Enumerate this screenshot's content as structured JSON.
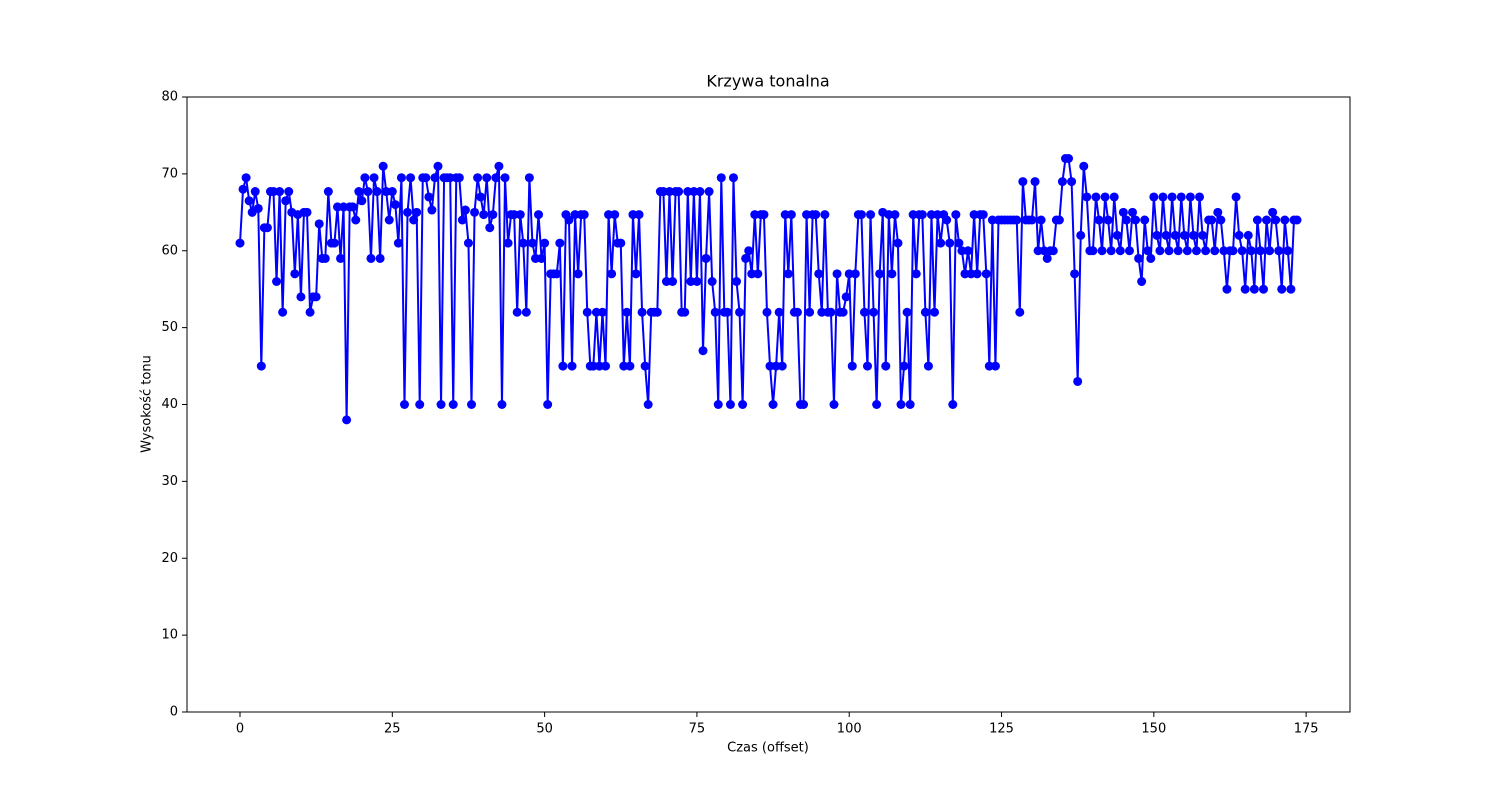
{
  "chart_data": {
    "type": "line",
    "title": "Krzywa tonalna",
    "x_label": "Czas (offset)",
    "y_label": "Wysokość tonu",
    "xlim": [
      -8.7,
      182.2
    ],
    "ylim": [
      0,
      80
    ],
    "xticks": [
      0,
      25,
      50,
      75,
      100,
      125,
      150,
      175
    ],
    "yticks": [
      0,
      10,
      20,
      30,
      40,
      50,
      60,
      70,
      80
    ],
    "x": [
      0,
      0.5,
      1,
      1.5,
      2,
      2.5,
      3,
      3.5,
      4,
      4.5,
      5,
      5.5,
      6,
      6.5,
      7,
      7.5,
      8,
      8.5,
      9,
      9.5,
      10,
      10.5,
      11,
      11.5,
      12,
      12.5,
      13,
      13.5,
      14,
      14.5,
      15,
      15.5,
      16,
      16.5,
      17,
      17.5,
      18,
      18.5,
      19,
      19.5,
      20,
      20.5,
      21,
      21.5,
      22,
      22.5,
      23,
      23.5,
      24,
      24.5,
      25,
      25.5,
      26,
      26.5,
      27,
      27.5,
      28,
      28.5,
      29,
      29.5,
      30,
      30.5,
      31,
      31.5,
      32,
      32.5,
      33,
      33.5,
      34,
      34.5,
      35,
      35.5,
      36,
      36.5,
      37,
      37.5,
      38,
      38.5,
      39,
      39.5,
      40,
      40.5,
      41,
      41.5,
      42,
      42.5,
      43,
      43.5,
      44,
      44.5,
      45,
      45.5,
      46,
      46.5,
      47,
      47.5,
      48,
      48.5,
      49,
      49.5,
      50,
      50.5,
      51,
      51.5,
      52,
      52.5,
      53,
      53.5,
      54,
      54.5,
      55,
      55.5,
      56,
      56.5,
      57,
      57.5,
      58,
      58.5,
      59,
      59.5,
      60,
      60.5,
      61,
      61.5,
      62,
      62.5,
      63,
      63.5,
      64,
      64.5,
      65,
      65.5,
      66,
      66.5,
      67,
      67.5,
      68,
      68.5,
      69,
      69.5,
      70,
      70.5,
      71,
      71.5,
      72,
      72.5,
      73,
      73.5,
      74,
      74.5,
      75,
      75.5,
      76,
      76.5,
      77,
      77.5,
      78,
      78.5,
      79,
      79.5,
      80,
      80.5,
      81,
      81.5,
      82,
      82.5,
      83,
      83.5,
      84,
      84.5,
      85,
      85.5,
      86,
      86.5,
      87,
      87.5,
      88,
      88.5,
      89,
      89.5,
      90,
      90.5,
      91,
      91.5,
      92,
      92.5,
      93,
      93.5,
      94,
      94.5,
      95,
      95.5,
      96,
      96.5,
      97,
      97.5,
      98,
      98.5,
      99,
      99.5,
      100,
      100.5,
      101,
      101.5,
      102,
      102.5,
      103,
      103.5,
      104,
      104.5,
      105,
      105.5,
      106,
      106.5,
      107,
      107.5,
      108,
      108.5,
      109,
      109.5,
      110,
      110.5,
      111,
      111.5,
      112,
      112.5,
      113,
      113.5,
      114,
      114.5,
      115,
      115.5,
      116,
      116.5,
      117,
      117.5,
      118,
      118.5,
      119,
      119.5,
      120,
      120.5,
      121,
      121.5,
      122,
      122.5,
      123,
      123.5,
      124,
      124.5,
      125,
      125.5,
      126,
      126.5,
      127,
      127.5,
      128,
      128.5,
      129,
      129.5,
      130,
      130.5,
      131,
      131.5,
      132,
      132.5,
      133,
      133.5,
      134,
      134.5,
      135,
      135.5,
      136,
      136.5,
      137,
      137.5,
      138,
      138.5,
      139,
      139.5,
      140,
      140.5,
      141,
      141.5,
      142,
      142.5,
      143,
      143.5,
      144,
      144.5,
      145,
      145.5,
      146,
      146.5,
      147,
      147.5,
      148,
      148.5,
      149,
      149.5,
      150,
      150.5,
      151,
      151.5,
      152,
      152.5,
      153,
      153.5,
      154,
      154.5,
      155,
      155.5,
      156,
      156.5,
      157,
      157.5,
      158,
      158.5,
      159,
      159.5,
      160,
      160.5,
      161,
      161.5,
      162,
      162.5,
      163,
      163.5,
      164,
      164.5,
      165,
      165.5,
      166,
      166.5,
      167,
      167.5,
      168,
      168.5,
      169,
      169.5,
      170,
      170.5,
      171,
      171.5,
      172,
      172.5,
      173,
      173.5
    ],
    "series": [
      {
        "color": "#0000ff",
        "values": [
          61,
          68,
          69.5,
          66.5,
          65,
          67.7,
          65.5,
          45,
          63,
          63,
          67.7,
          67.7,
          56,
          67.7,
          52,
          66.5,
          67.7,
          65,
          57,
          64.7,
          54,
          65,
          65,
          52,
          54,
          54,
          63.5,
          59,
          59,
          67.7,
          61,
          61,
          65.7,
          59,
          65.7,
          38,
          65.7,
          65.7,
          64,
          67.7,
          66.5,
          69.5,
          67.7,
          59,
          69.5,
          67.7,
          59,
          71,
          67.7,
          64,
          67.7,
          66,
          61,
          69.5,
          40,
          65,
          69.5,
          64,
          65,
          40,
          69.5,
          69.5,
          67,
          65.3,
          69.5,
          71,
          40,
          69.5,
          69.5,
          69.5,
          40,
          69.5,
          69.5,
          64,
          65.3,
          61,
          40,
          65,
          69.5,
          67,
          64.7,
          69.5,
          63,
          64.7,
          69.5,
          71,
          40,
          69.5,
          61,
          64.7,
          64.7,
          52,
          64.7,
          61,
          52,
          69.5,
          61,
          59,
          64.7,
          59,
          61,
          40,
          57,
          57,
          57,
          61,
          45,
          64.7,
          64,
          45,
          64.7,
          57,
          64.7,
          64.7,
          52,
          45,
          45,
          52,
          45,
          52,
          45,
          64.7,
          57,
          64.7,
          61,
          61,
          45,
          52,
          45,
          64.7,
          57,
          64.7,
          52,
          45,
          40,
          52,
          52,
          52,
          67.7,
          67.7,
          56,
          67.7,
          56,
          67.7,
          67.7,
          52,
          52,
          67.7,
          56,
          67.7,
          56,
          67.7,
          47,
          59,
          67.7,
          56,
          52,
          40,
          69.5,
          52,
          52,
          40,
          69.5,
          56,
          52,
          40,
          59,
          60,
          57,
          64.7,
          57,
          64.7,
          64.7,
          52,
          45,
          40,
          45,
          52,
          45,
          64.7,
          57,
          64.7,
          52,
          52,
          40,
          40,
          64.7,
          52,
          64.7,
          64.7,
          57,
          52,
          64.7,
          52,
          52,
          40,
          57,
          52,
          52,
          54,
          57,
          45,
          57,
          64.7,
          64.7,
          52,
          45,
          64.7,
          52,
          40,
          57,
          65,
          45,
          64.7,
          57,
          64.7,
          61,
          40,
          45,
          52,
          40,
          64.7,
          57,
          64.7,
          64.7,
          52,
          45,
          64.7,
          52,
          64.7,
          61,
          64.7,
          64,
          61,
          40,
          64.7,
          61,
          60,
          57,
          60,
          57,
          64.7,
          57,
          64.7,
          64.7,
          57,
          45,
          64,
          45,
          64,
          64,
          64,
          64,
          64,
          64,
          64,
          52,
          69,
          64,
          64,
          64,
          69,
          60,
          64,
          60,
          59,
          60,
          60,
          64,
          64,
          69,
          72,
          72,
          69,
          57,
          43,
          62,
          71,
          67,
          60,
          60,
          67,
          64,
          60,
          67,
          64,
          60,
          67,
          62,
          60,
          65,
          64,
          60,
          65,
          64,
          59,
          56,
          64,
          60,
          59,
          67,
          62,
          60,
          67,
          62,
          60,
          67,
          62,
          60,
          67,
          62,
          60,
          67,
          62,
          60,
          67,
          62,
          60,
          64,
          64,
          60,
          65,
          64,
          60,
          55,
          60,
          60,
          67,
          62,
          60,
          55,
          62,
          60,
          55,
          64,
          60,
          55,
          64,
          60,
          65,
          64,
          60,
          55,
          64,
          60,
          55,
          64,
          64
        ]
      }
    ]
  }
}
